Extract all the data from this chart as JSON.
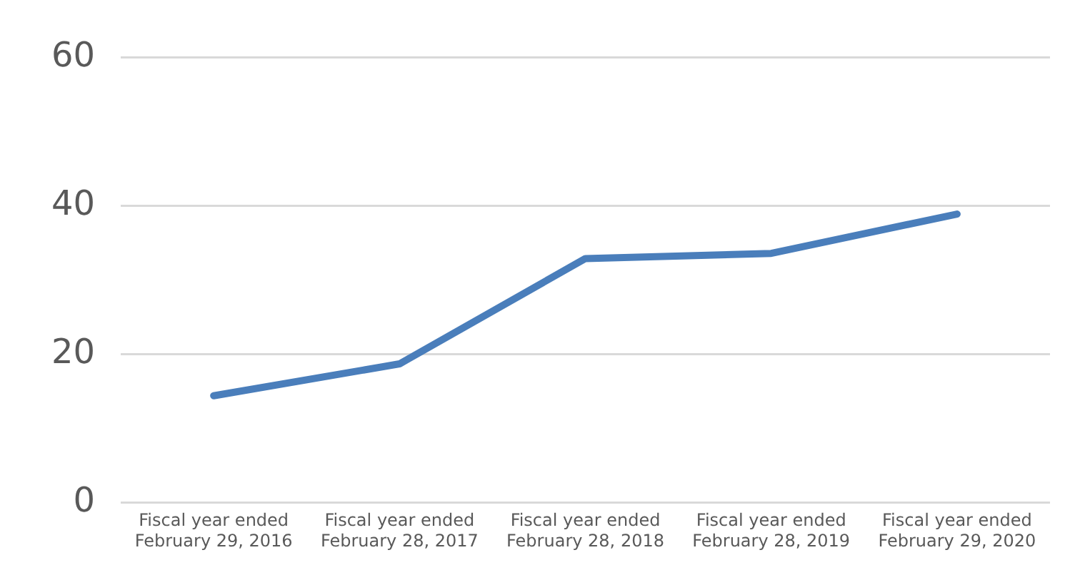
{
  "chart_data": {
    "type": "line",
    "categories": [
      "Fiscal year ended February 29, 2016",
      "Fiscal year ended February 28, 2017",
      "Fiscal year ended February 28, 2018",
      "Fiscal year ended February 28, 2019",
      "Fiscal year ended February 29, 2020"
    ],
    "series": [
      {
        "color": "#4a7ebb",
        "values": [
          14.4,
          18.7,
          32.9,
          33.6,
          38.9
        ]
      }
    ],
    "ylim": [
      0,
      60
    ],
    "yticks": [
      0,
      20,
      40,
      60
    ],
    "grid": "y",
    "legend": false,
    "marker": "none",
    "line_style": "solid"
  }
}
